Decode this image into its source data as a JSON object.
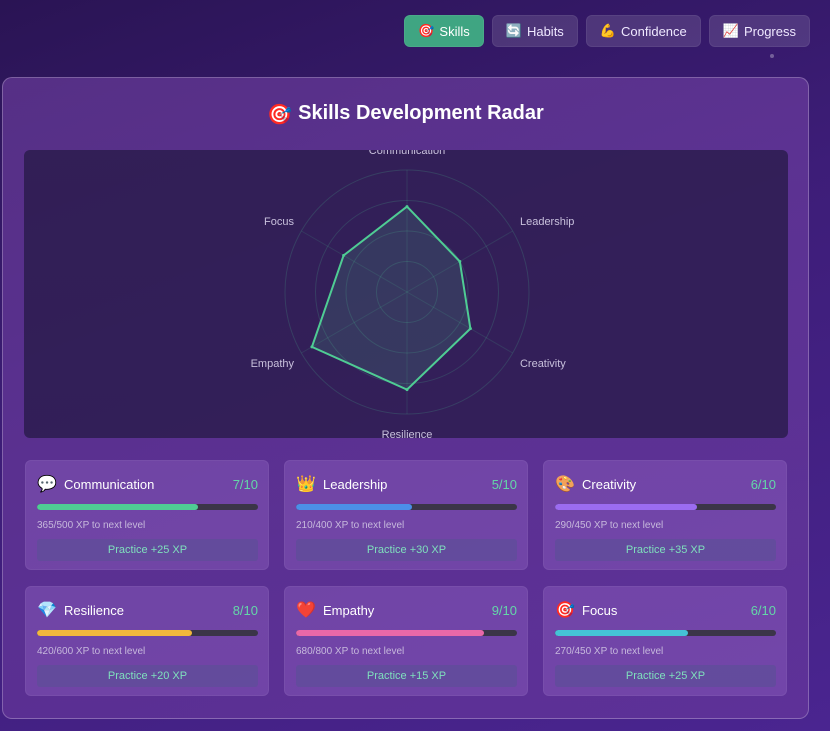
{
  "tabs": [
    {
      "icon": "🎯",
      "label": "Skills",
      "active": true
    },
    {
      "icon": "🔄",
      "label": "Habits",
      "active": false
    },
    {
      "icon": "💪",
      "label": "Confidence",
      "active": false
    },
    {
      "icon": "📈",
      "label": "Progress",
      "active": false
    }
  ],
  "panel": {
    "title_icon": "🎯",
    "title": "Skills Development Radar"
  },
  "chart_data": {
    "type": "radar",
    "axes": [
      "Communication",
      "Leadership",
      "Creativity",
      "Resilience",
      "Empathy",
      "Focus"
    ],
    "values": [
      7,
      5,
      6,
      8,
      9,
      6
    ],
    "max": 10,
    "rings": 4,
    "color": "#4fcc94"
  },
  "skills": [
    {
      "icon": "💬",
      "name": "Communication",
      "level": "7/10",
      "progress": 0.73,
      "color": "#4fcc94",
      "xp": "365/500 XP to next level",
      "practice": "Practice +25 XP"
    },
    {
      "icon": "👑",
      "name": "Leadership",
      "level": "5/10",
      "progress": 0.525,
      "color": "#4b8fe8",
      "xp": "210/400 XP to next level",
      "practice": "Practice +30 XP"
    },
    {
      "icon": "🎨",
      "name": "Creativity",
      "level": "6/10",
      "progress": 0.644,
      "color": "#9b6cf0",
      "xp": "290/450 XP to next level",
      "practice": "Practice +35 XP"
    },
    {
      "icon": "💎",
      "name": "Resilience",
      "level": "8/10",
      "progress": 0.7,
      "color": "#f2b73c",
      "xp": "420/600 XP to next level",
      "practice": "Practice +20 XP"
    },
    {
      "icon": "❤️",
      "name": "Empathy",
      "level": "9/10",
      "progress": 0.85,
      "color": "#e968a8",
      "xp": "680/800 XP to next level",
      "practice": "Practice +15 XP"
    },
    {
      "icon": "🎯",
      "name": "Focus",
      "level": "6/10",
      "progress": 0.6,
      "color": "#45c2d6",
      "xp": "270/450 XP to next level",
      "practice": "Practice +25 XP"
    }
  ]
}
